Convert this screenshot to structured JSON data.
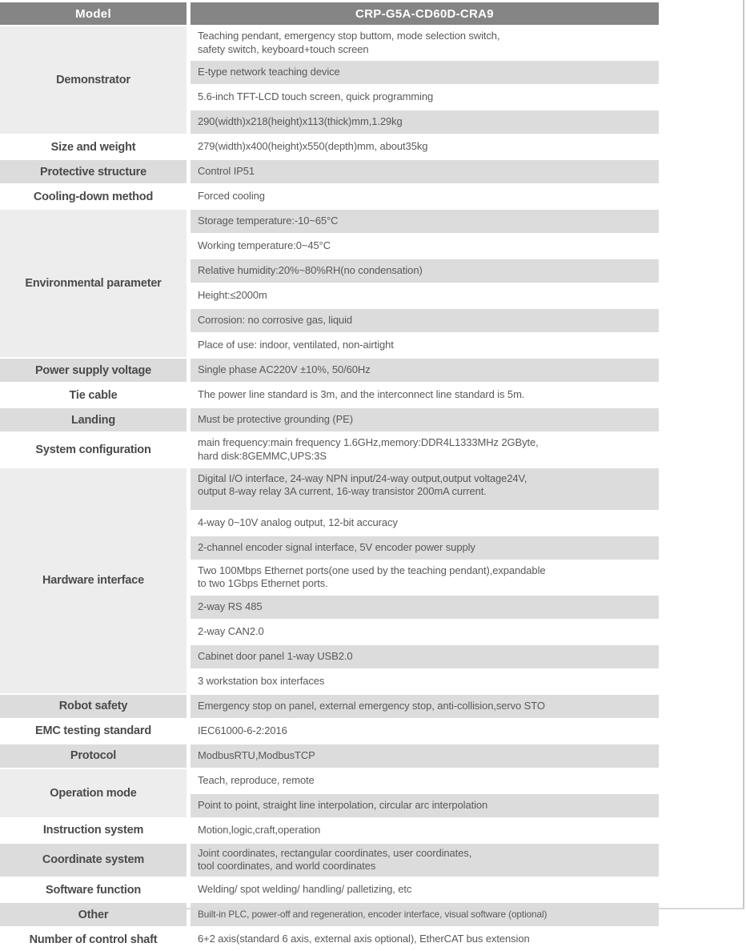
{
  "colors": {
    "header_bg": "#858585",
    "header_text": "#ffffff",
    "row_shade": "#dcdcdc",
    "group_cell": "#ededed",
    "label_text": "#4a4a4a",
    "value_text": "#595959",
    "edge_line": "#c9c9c9",
    "bottom_line": "#d9d9d9"
  },
  "table": {
    "header": {
      "model_label": "Model",
      "model_value": "CRP-G5A-CD60D-CRA9"
    },
    "sections": [
      {
        "label": "Demonstrator",
        "rows": [
          "Teaching pendant,  emergency stop buttom,  mode selection switch,\nsafety switch,  keyboard+touch screen",
          "E-type network teaching device",
          "5.6-inch TFT-LCD touch screen,  quick programming",
          "290(width)x218(height)x113(thick)mm,1.29kg"
        ]
      },
      {
        "label": "Size and weight",
        "rows": [
          "279(width)x400(height)x550(depth)mm,  about35kg"
        ]
      },
      {
        "label": "Protective structure",
        "rows": [
          "Control IP51"
        ]
      },
      {
        "label": "Cooling-down method",
        "rows": [
          "Forced cooling"
        ]
      },
      {
        "label": "Environmental parameter",
        "rows": [
          "Storage temperature:-10~65°C",
          "Working temperature:0~45°C",
          "Relative humidity:20%~80%RH(no condensation)",
          "Height:≤2000m",
          "Corrosion:  no corrosive gas, liquid",
          "Place of use:  indoor, ventilated, non-airtight"
        ]
      },
      {
        "label": "Power supply voltage",
        "rows": [
          "Single phase AC220V  ±10%,  50/60Hz"
        ]
      },
      {
        "label": "Tie cable",
        "rows": [
          "The power line standard is 3m,  and the interconnect line standard is 5m."
        ]
      },
      {
        "label": "Landing",
        "rows": [
          "Must be protective grounding (PE)"
        ]
      },
      {
        "label": "System configuration",
        "rows": [
          "main frequency:main frequency 1.6GHz,memory:DDR4L1333MHz 2GByte,\nhard disk:8GEMMC,UPS:3S"
        ]
      },
      {
        "label": "Hardware interface",
        "rows": [
          "Digital I/O interface,  24-way NPN input/24-way output,output voltage24V,\noutput 8-way relay 3A current,  16-way transistor 200mA current.",
          "4-way 0~10V analog output,  12-bit accuracy",
          "2-channel encoder signal interface,  5V encoder power supply",
          "Two 100Mbps Ethernet ports(one used by the teaching pendant),expandable\nto two 1Gbps Ethernet ports.",
          "2-way  RS 485",
          "2-way CAN2.0",
          "Cabinet door panel 1-way USB2.0",
          "3 workstation box interfaces"
        ]
      },
      {
        "label": "Robot safety",
        "rows": [
          "Emergency stop on panel,  external emergency stop,  anti-collision,servo STO"
        ]
      },
      {
        "label": "EMC testing standard",
        "rows": [
          "IEC61000-6-2:2016"
        ]
      },
      {
        "label": "Protocol",
        "rows": [
          "ModbusRTU,ModbusTCP"
        ]
      },
      {
        "label": "Operation mode",
        "rows": [
          "Teach, reproduce, remote",
          "Point to point, straight line interpolation, circular arc interpolation"
        ]
      },
      {
        "label": "Instruction system",
        "rows": [
          "Motion,logic,craft,operation"
        ]
      },
      {
        "label": "Coordinate system",
        "rows": [
          "Joint coordinates, rectangular coordinates, user coordinates,\ntool coordinates, and world  coordinates"
        ]
      },
      {
        "label": "Software function",
        "rows": [
          "Welding/ spot welding/ handling/ palletizing,  etc"
        ]
      },
      {
        "label": "Other",
        "rows": [
          "Built-in PLC,  power-off and regeneration,  encoder interface,  visual software (optional)"
        ]
      },
      {
        "label": "Number of control shaft",
        "rows": [
          "6+2 axis(standard 6 axis,  external axis optional),  EtherCAT bus extension"
        ]
      }
    ]
  }
}
